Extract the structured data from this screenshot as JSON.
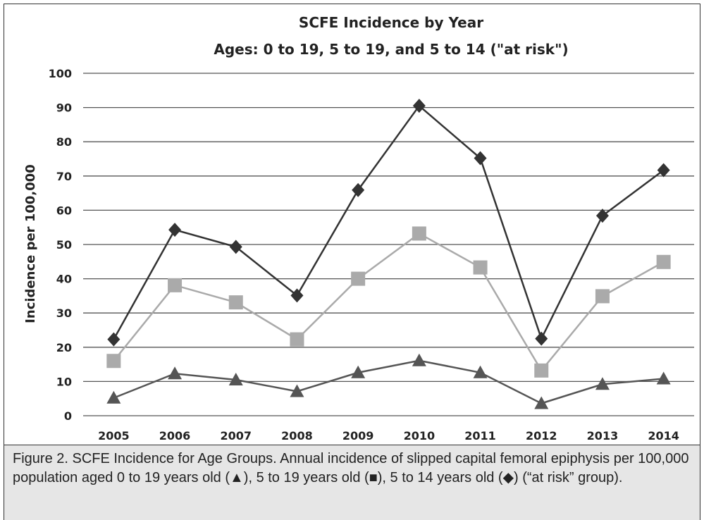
{
  "chart_data": {
    "type": "line",
    "title": "SCFE Incidence by Year",
    "subtitle": "Ages: 0 to 19, 5 to 19, and 5 to 14 (\"at risk\")",
    "xlabel": "",
    "ylabel": "Incidence per 100,000",
    "ylim": [
      0,
      100
    ],
    "yticks": [
      0,
      10,
      20,
      30,
      40,
      50,
      60,
      70,
      80,
      90,
      100
    ],
    "categories": [
      "2005",
      "2006",
      "2007",
      "2008",
      "2009",
      "2010",
      "2011",
      "2012",
      "2013",
      "2014"
    ],
    "grid": "horizontal",
    "legend": "none",
    "series": [
      {
        "marker": "diamond",
        "color": "#333333",
        "values": [
          22.3,
          54.3,
          49.3,
          35.1,
          65.9,
          90.5,
          75.2,
          22.5,
          58.4,
          71.7
        ]
      },
      {
        "marker": "square",
        "color": "#aaaaaa",
        "values": [
          16.0,
          38.1,
          33.1,
          22.3,
          40.0,
          53.2,
          43.3,
          13.2,
          34.9,
          44.9
        ]
      },
      {
        "marker": "triangle",
        "color": "#555555",
        "values": [
          5.2,
          12.3,
          10.5,
          7.1,
          12.6,
          16.1,
          12.6,
          3.6,
          9.2,
          10.8
        ]
      }
    ]
  },
  "caption": {
    "text": "Figure 2. SCFE Incidence for Age Groups. Annual incidence of slipped capital femoral epiphysis per 100,000 population aged 0 to 19 years old (▲), 5 to 19 years old (■), 5 to 14 years old (◆) (“at risk” group)."
  }
}
